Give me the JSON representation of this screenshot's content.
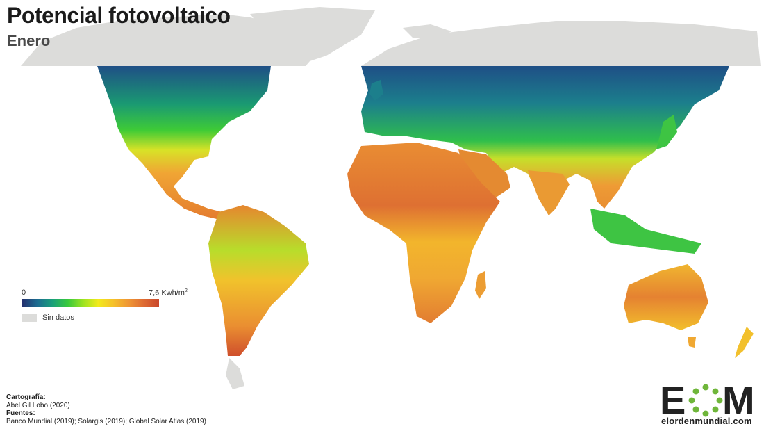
{
  "title": "Potencial fotovoltaico",
  "subtitle": "Enero",
  "legend": {
    "min_label": "0",
    "max_label": "7,6 Kwh/m",
    "max_unit_sup": "2",
    "no_data_label": "Sin datos",
    "colors": [
      "#24306e",
      "#1c6c90",
      "#1aa07a",
      "#38c93c",
      "#9be321",
      "#f2ea1c",
      "#f5c02a",
      "#ef9634",
      "#de6b33",
      "#c9472b"
    ],
    "no_data_color": "#dcdcda"
  },
  "credits": {
    "cartography_heading": "Cartografía:",
    "cartography": "Abel Gil Lobo (2020)",
    "sources_heading": "Fuentes:",
    "sources": "Banco Mundial (2019); Solargis (2019); Global Solar Atlas (2019)"
  },
  "brand": {
    "logo_text": "EOM",
    "url": "elordenmundial.com"
  }
}
